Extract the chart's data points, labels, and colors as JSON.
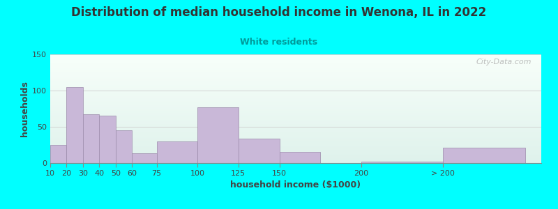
{
  "title": "Distribution of median household income in Wenona, IL in 2022",
  "subtitle": "White residents",
  "xlabel": "household income ($1000)",
  "ylabel": "households",
  "bar_color": "#C9B8D8",
  "bar_edgecolor": "#9B8AAA",
  "background_color": "#00FFFF",
  "plot_bg_gradient_top": "#dff2ec",
  "plot_bg_gradient_bottom": "#f8fffa",
  "watermark": "City-Data.com",
  "title_color": "#333333",
  "subtitle_color": "#009999",
  "values": [
    25,
    105,
    67,
    65,
    45,
    13,
    30,
    77,
    34,
    15,
    2,
    21
  ],
  "bar_widths": [
    10,
    10,
    10,
    10,
    10,
    15,
    25,
    25,
    25,
    25,
    50,
    50
  ],
  "bar_lefts": [
    10,
    20,
    30,
    40,
    50,
    60,
    75,
    100,
    125,
    150,
    200,
    250
  ],
  "xtick_positions": [
    10,
    20,
    30,
    40,
    50,
    60,
    75,
    100,
    125,
    150,
    200,
    250
  ],
  "xtick_labels": [
    "10",
    "20",
    "30",
    "40",
    "50",
    "60",
    "75",
    "100",
    "125",
    "150",
    "200",
    "> 200"
  ],
  "ylim": [
    0,
    150
  ],
  "yticks": [
    0,
    50,
    100,
    150
  ],
  "title_fontsize": 12,
  "subtitle_fontsize": 9,
  "axis_label_fontsize": 9,
  "tick_fontsize": 8
}
